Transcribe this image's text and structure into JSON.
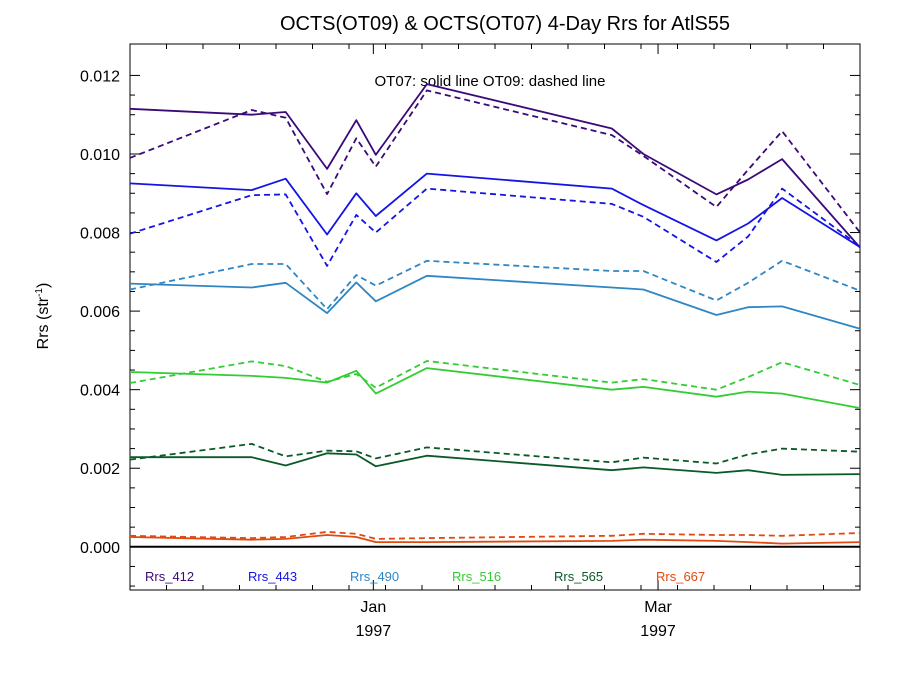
{
  "chart_data": {
    "type": "line",
    "title": "OCTS(OT09) & OCTS(OT07) 4-Day Rrs for AtlS55",
    "annotation": "OT07: solid line   OT09: dashed line",
    "ylabel_main": "Rrs (str",
    "ylabel_sup": "-1",
    "ylabel_close": ")",
    "xlim": [
      0,
      30
    ],
    "ylim": [
      -0.0011,
      0.0128
    ],
    "yticks": [
      0.0,
      0.002,
      0.004,
      0.006,
      0.008,
      0.01,
      0.012
    ],
    "ytick_labels": [
      "0.000",
      "0.002",
      "0.004",
      "0.006",
      "0.008",
      "0.010",
      "0.012"
    ],
    "xtick_labels": [
      {
        "x": 10,
        "month": "Jan",
        "year": "1997"
      },
      {
        "x": 21.7,
        "month": "Mar",
        "year": "1997"
      }
    ],
    "x": [
      0,
      5,
      6.4,
      8.1,
      9.3,
      10.1,
      12.2,
      19.8,
      21.1,
      24.1,
      25.4,
      26.8,
      30
    ],
    "series": [
      {
        "name": "Rrs_412",
        "style": "solid",
        "color": "#3a0a78",
        "values": [
          0.01115,
          0.011,
          0.01107,
          0.00962,
          0.01086,
          0.00998,
          0.01178,
          0.01065,
          0.01,
          0.00897,
          0.00935,
          0.00987,
          0.00762
        ]
      },
      {
        "name": "Rrs_412",
        "style": "dashed",
        "color": "#3a0a78",
        "values": [
          0.0099,
          0.01112,
          0.01092,
          0.00898,
          0.0104,
          0.00968,
          0.01162,
          0.01048,
          0.00995,
          0.00865,
          0.0096,
          0.01058,
          0.008
        ]
      },
      {
        "name": "Rrs_443",
        "style": "solid",
        "color": "#1414e6",
        "values": [
          0.00925,
          0.00908,
          0.00937,
          0.00795,
          0.009,
          0.00842,
          0.0095,
          0.00912,
          0.0087,
          0.0078,
          0.00823,
          0.00888,
          0.00763
        ]
      },
      {
        "name": "Rrs_443",
        "style": "dashed",
        "color": "#1414e6",
        "values": [
          0.00797,
          0.00895,
          0.00897,
          0.00715,
          0.00845,
          0.008,
          0.00912,
          0.00873,
          0.0084,
          0.00725,
          0.0079,
          0.00912,
          0.00765
        ]
      },
      {
        "name": "Rrs_490",
        "style": "solid",
        "color": "#2f86c3",
        "values": [
          0.0067,
          0.0066,
          0.00672,
          0.00595,
          0.00673,
          0.00625,
          0.0069,
          0.0066,
          0.00655,
          0.0059,
          0.0061,
          0.00612,
          0.00555
        ]
      },
      {
        "name": "Rrs_490",
        "style": "dashed",
        "color": "#2f86c3",
        "values": [
          0.00655,
          0.0072,
          0.0072,
          0.00605,
          0.00692,
          0.00665,
          0.00728,
          0.00702,
          0.00702,
          0.00627,
          0.00672,
          0.00728,
          0.00652
        ]
      },
      {
        "name": "Rrs_516",
        "style": "solid",
        "color": "#33cc33",
        "values": [
          0.00445,
          0.00435,
          0.0043,
          0.00418,
          0.00448,
          0.0039,
          0.00455,
          0.004,
          0.00407,
          0.00382,
          0.00395,
          0.0039,
          0.00353
        ]
      },
      {
        "name": "Rrs_516",
        "style": "dashed",
        "color": "#33cc33",
        "values": [
          0.00417,
          0.00472,
          0.0046,
          0.0042,
          0.0044,
          0.00405,
          0.00473,
          0.00418,
          0.00427,
          0.004,
          0.00432,
          0.0047,
          0.00412
        ]
      },
      {
        "name": "Rrs_565",
        "style": "solid",
        "color": "#0a5a28",
        "values": [
          0.00228,
          0.00228,
          0.00207,
          0.00238,
          0.00235,
          0.00205,
          0.00232,
          0.00195,
          0.00202,
          0.00188,
          0.00195,
          0.00183,
          0.00185
        ]
      },
      {
        "name": "Rrs_565",
        "style": "dashed",
        "color": "#0a5a28",
        "values": [
          0.00222,
          0.00262,
          0.0023,
          0.00245,
          0.00243,
          0.00225,
          0.00253,
          0.00215,
          0.00227,
          0.00212,
          0.00235,
          0.0025,
          0.00242
        ]
      },
      {
        "name": "Rrs_667",
        "style": "solid",
        "color": "#e04a10",
        "values": [
          0.00025,
          0.00018,
          0.0002,
          0.0003,
          0.00025,
          0.00012,
          0.00012,
          0.00015,
          0.00018,
          0.00015,
          0.00012,
          8e-05,
          0.00012
        ]
      },
      {
        "name": "Rrs_667",
        "style": "dashed",
        "color": "#e04a10",
        "values": [
          0.00028,
          0.00022,
          0.00025,
          0.00038,
          0.00033,
          0.0002,
          0.00022,
          0.00028,
          0.00033,
          0.0003,
          0.0003,
          0.00028,
          0.00035
        ]
      }
    ],
    "legend": [
      {
        "name": "Rrs_412",
        "color": "#3a0a78"
      },
      {
        "name": "Rrs_443",
        "color": "#1414e6"
      },
      {
        "name": "Rrs_490",
        "color": "#2f86c3"
      },
      {
        "name": "Rrs_516",
        "color": "#33cc33"
      },
      {
        "name": "Rrs_565",
        "color": "#0a5a28"
      },
      {
        "name": "Rrs_667",
        "color": "#e04a10"
      }
    ],
    "legend_placement": "bottom-left inside",
    "zero_line": 0.0,
    "grid": false
  }
}
